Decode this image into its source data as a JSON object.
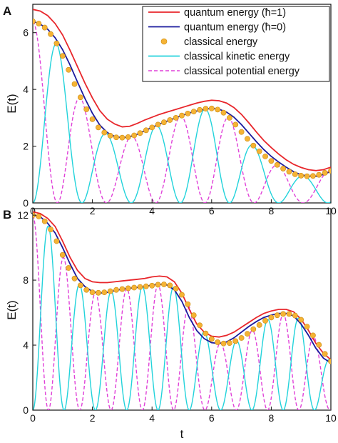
{
  "chart_data": [
    {
      "type": "line",
      "panel_label": "A",
      "ylabel": "E(t)",
      "xlabel": "",
      "xlim": [
        0,
        10
      ],
      "ylim": [
        0,
        7
      ],
      "x_ticks": [
        0,
        2,
        4,
        6,
        8,
        10
      ],
      "y_ticks": [
        0,
        2,
        4,
        6
      ],
      "grid": false,
      "legend_position": "top-right",
      "legend": [
        {
          "name": "quantum energy (ħ=1)",
          "style": "line",
          "color": "#e8262b"
        },
        {
          "name": "quantum energy (ħ=0)",
          "style": "line",
          "color": "#1a1a9e"
        },
        {
          "name": "classical energy",
          "style": "marker",
          "color": "#f5b335"
        },
        {
          "name": "classical kinetic energy",
          "style": "line",
          "color": "#22d3db"
        },
        {
          "name": "classical potential energy",
          "style": "dashed",
          "color": "#e040d8"
        }
      ],
      "series": [
        {
          "name": "quantum energy (ħ=1)",
          "color": "#e8262b",
          "style": "line",
          "x": [
            0,
            0.25,
            0.5,
            0.75,
            1,
            1.25,
            1.5,
            1.75,
            2,
            2.25,
            2.5,
            2.75,
            3,
            3.25,
            3.5,
            3.75,
            4,
            4.25,
            4.5,
            4.75,
            5,
            5.25,
            5.5,
            5.75,
            6,
            6.25,
            6.5,
            6.75,
            7,
            7.25,
            7.5,
            7.75,
            8,
            8.25,
            8.5,
            8.75,
            9,
            9.25,
            9.5,
            9.75,
            10
          ],
          "values": [
            6.82,
            6.76,
            6.6,
            6.32,
            5.92,
            5.38,
            4.8,
            4.22,
            3.7,
            3.25,
            2.95,
            2.78,
            2.68,
            2.7,
            2.8,
            2.92,
            3.02,
            3.12,
            3.2,
            3.28,
            3.36,
            3.44,
            3.52,
            3.58,
            3.62,
            3.6,
            3.52,
            3.36,
            3.12,
            2.82,
            2.5,
            2.2,
            1.95,
            1.72,
            1.52,
            1.36,
            1.25,
            1.17,
            1.14,
            1.17,
            1.26
          ]
        },
        {
          "name": "quantum energy (ħ=0)",
          "color": "#1a1a9e",
          "style": "line",
          "x": [
            0,
            0.25,
            0.5,
            0.75,
            1,
            1.25,
            1.5,
            1.75,
            2,
            2.25,
            2.5,
            2.75,
            3,
            3.25,
            3.5,
            3.75,
            4,
            4.25,
            4.5,
            4.75,
            5,
            5.25,
            5.5,
            5.75,
            6,
            6.25,
            6.5,
            6.75,
            7,
            7.25,
            7.5,
            7.75,
            8,
            8.25,
            8.5,
            8.75,
            9,
            9.25,
            9.5,
            9.75,
            10
          ],
          "values": [
            6.4,
            6.3,
            6.12,
            5.82,
            5.4,
            4.86,
            4.26,
            3.68,
            3.16,
            2.74,
            2.48,
            2.34,
            2.3,
            2.33,
            2.42,
            2.54,
            2.66,
            2.78,
            2.88,
            2.98,
            3.08,
            3.17,
            3.24,
            3.3,
            3.33,
            3.3,
            3.2,
            3.02,
            2.76,
            2.46,
            2.16,
            1.88,
            1.64,
            1.44,
            1.26,
            1.1,
            0.99,
            0.94,
            0.94,
            1.0,
            1.11
          ]
        },
        {
          "name": "classical energy",
          "color": "#f5b335",
          "style": "marker",
          "x": [
            0,
            0.2,
            0.4,
            0.6,
            0.8,
            1,
            1.2,
            1.4,
            1.6,
            1.8,
            2,
            2.2,
            2.4,
            2.6,
            2.8,
            3,
            3.2,
            3.4,
            3.6,
            3.8,
            4,
            4.2,
            4.4,
            4.6,
            4.8,
            5,
            5.2,
            5.4,
            5.6,
            5.8,
            6,
            6.2,
            6.4,
            6.6,
            6.8,
            7,
            7.2,
            7.4,
            7.6,
            7.8,
            8,
            8.2,
            8.4,
            8.6,
            8.8,
            9,
            9.2,
            9.4,
            9.6,
            9.8,
            10
          ],
          "values": [
            6.4,
            6.32,
            6.18,
            5.95,
            5.62,
            5.18,
            4.69,
            4.19,
            3.72,
            3.3,
            2.95,
            2.66,
            2.48,
            2.37,
            2.31,
            2.3,
            2.32,
            2.38,
            2.46,
            2.56,
            2.66,
            2.76,
            2.84,
            2.92,
            3.0,
            3.08,
            3.15,
            3.22,
            3.28,
            3.32,
            3.33,
            3.29,
            3.18,
            3.0,
            2.76,
            2.5,
            2.26,
            2.02,
            1.82,
            1.64,
            1.48,
            1.34,
            1.21,
            1.1,
            1.01,
            0.96,
            0.94,
            0.95,
            0.99,
            1.06,
            1.13
          ]
        },
        {
          "name": "classical kinetic energy",
          "color": "#22d3db",
          "style": "line",
          "fn": "kinetic",
          "E_series": "classical energy",
          "period": 3.3,
          "phase_offset": 0
        },
        {
          "name": "classical potential energy",
          "color": "#e040d8",
          "style": "dashed",
          "fn": "potential",
          "E_series": "classical energy",
          "period": 3.3,
          "phase_offset": 0
        }
      ]
    },
    {
      "type": "line",
      "panel_label": "B",
      "ylabel": "E(t)",
      "xlabel": "t",
      "xlim": [
        0,
        10
      ],
      "ylim": [
        0,
        12.4
      ],
      "x_ticks": [
        0,
        2,
        4,
        6,
        8,
        10
      ],
      "y_ticks": [
        0,
        4,
        8,
        12
      ],
      "grid": false,
      "series": [
        {
          "name": "quantum energy (ħ=1)",
          "color": "#e8262b",
          "style": "line",
          "x": [
            0,
            0.25,
            0.5,
            0.75,
            1,
            1.25,
            1.5,
            1.75,
            2,
            2.25,
            2.5,
            2.75,
            3,
            3.25,
            3.5,
            3.75,
            4,
            4.25,
            4.5,
            4.75,
            5,
            5.25,
            5.5,
            5.75,
            6,
            6.25,
            6.5,
            6.75,
            7,
            7.25,
            7.5,
            7.75,
            8,
            8.25,
            8.5,
            8.75,
            9,
            9.25,
            9.5,
            9.75,
            10
          ],
          "values": [
            12.2,
            12.1,
            11.8,
            11.3,
            10.4,
            9.4,
            8.6,
            8.1,
            7.9,
            7.85,
            7.85,
            7.9,
            7.95,
            8.0,
            8.05,
            8.1,
            8.2,
            8.25,
            8.2,
            7.9,
            7.2,
            6.2,
            5.3,
            4.8,
            4.55,
            4.5,
            4.6,
            4.8,
            5.1,
            5.4,
            5.7,
            5.95,
            6.1,
            6.2,
            6.2,
            6.05,
            5.6,
            4.9,
            4.1,
            3.5,
            3.1
          ]
        },
        {
          "name": "quantum energy (ħ=0)",
          "color": "#1a1a9e",
          "style": "line",
          "x": [
            0,
            0.25,
            0.5,
            0.75,
            1,
            1.25,
            1.5,
            1.75,
            2,
            2.25,
            2.5,
            2.75,
            3,
            3.25,
            3.5,
            3.75,
            4,
            4.25,
            4.5,
            4.75,
            5,
            5.25,
            5.5,
            5.75,
            6,
            6.25,
            6.5,
            6.75,
            7,
            7.25,
            7.5,
            7.75,
            8,
            8.25,
            8.5,
            8.75,
            9,
            9.25,
            9.5,
            9.75,
            10
          ],
          "values": [
            12.0,
            11.9,
            11.5,
            10.9,
            10.0,
            9.0,
            8.1,
            7.6,
            7.3,
            7.2,
            7.25,
            7.35,
            7.45,
            7.5,
            7.55,
            7.6,
            7.7,
            7.75,
            7.7,
            7.4,
            6.7,
            5.7,
            4.9,
            4.4,
            4.15,
            4.1,
            4.2,
            4.45,
            4.8,
            5.15,
            5.45,
            5.7,
            5.85,
            5.95,
            5.95,
            5.8,
            5.3,
            4.6,
            3.8,
            3.2,
            2.9
          ]
        },
        {
          "name": "classical energy",
          "color": "#f5b335",
          "style": "marker",
          "x": [
            0,
            0.2,
            0.4,
            0.6,
            0.8,
            1,
            1.2,
            1.4,
            1.6,
            1.8,
            2,
            2.2,
            2.4,
            2.6,
            2.8,
            3,
            3.2,
            3.4,
            3.6,
            3.8,
            4,
            4.2,
            4.4,
            4.6,
            4.8,
            5,
            5.2,
            5.4,
            5.6,
            5.8,
            6,
            6.2,
            6.4,
            6.6,
            6.8,
            7,
            7.2,
            7.4,
            7.6,
            7.8,
            8,
            8.2,
            8.4,
            8.6,
            8.8,
            9,
            9.2,
            9.4,
            9.6,
            9.8,
            10
          ],
          "values": [
            12.0,
            11.92,
            11.62,
            11.12,
            10.4,
            9.55,
            8.75,
            8.1,
            7.68,
            7.4,
            7.25,
            7.22,
            7.25,
            7.32,
            7.4,
            7.45,
            7.5,
            7.54,
            7.58,
            7.62,
            7.66,
            7.72,
            7.74,
            7.68,
            7.48,
            7.1,
            6.52,
            5.84,
            5.22,
            4.72,
            4.38,
            4.18,
            4.1,
            4.13,
            4.25,
            4.44,
            4.7,
            4.98,
            5.24,
            5.5,
            5.7,
            5.84,
            5.92,
            5.92,
            5.82,
            5.56,
            5.14,
            4.6,
            4.02,
            3.46,
            3.0
          ]
        },
        {
          "name": "classical kinetic energy",
          "color": "#22d3db",
          "style": "line",
          "fn": "kinetic",
          "E_series": "classical energy",
          "period": 2.1,
          "phase_offset": 0
        },
        {
          "name": "classical potential energy",
          "color": "#e040d8",
          "style": "dashed",
          "fn": "potential",
          "E_series": "classical energy",
          "period": 2.1,
          "phase_offset": 0
        }
      ]
    }
  ]
}
